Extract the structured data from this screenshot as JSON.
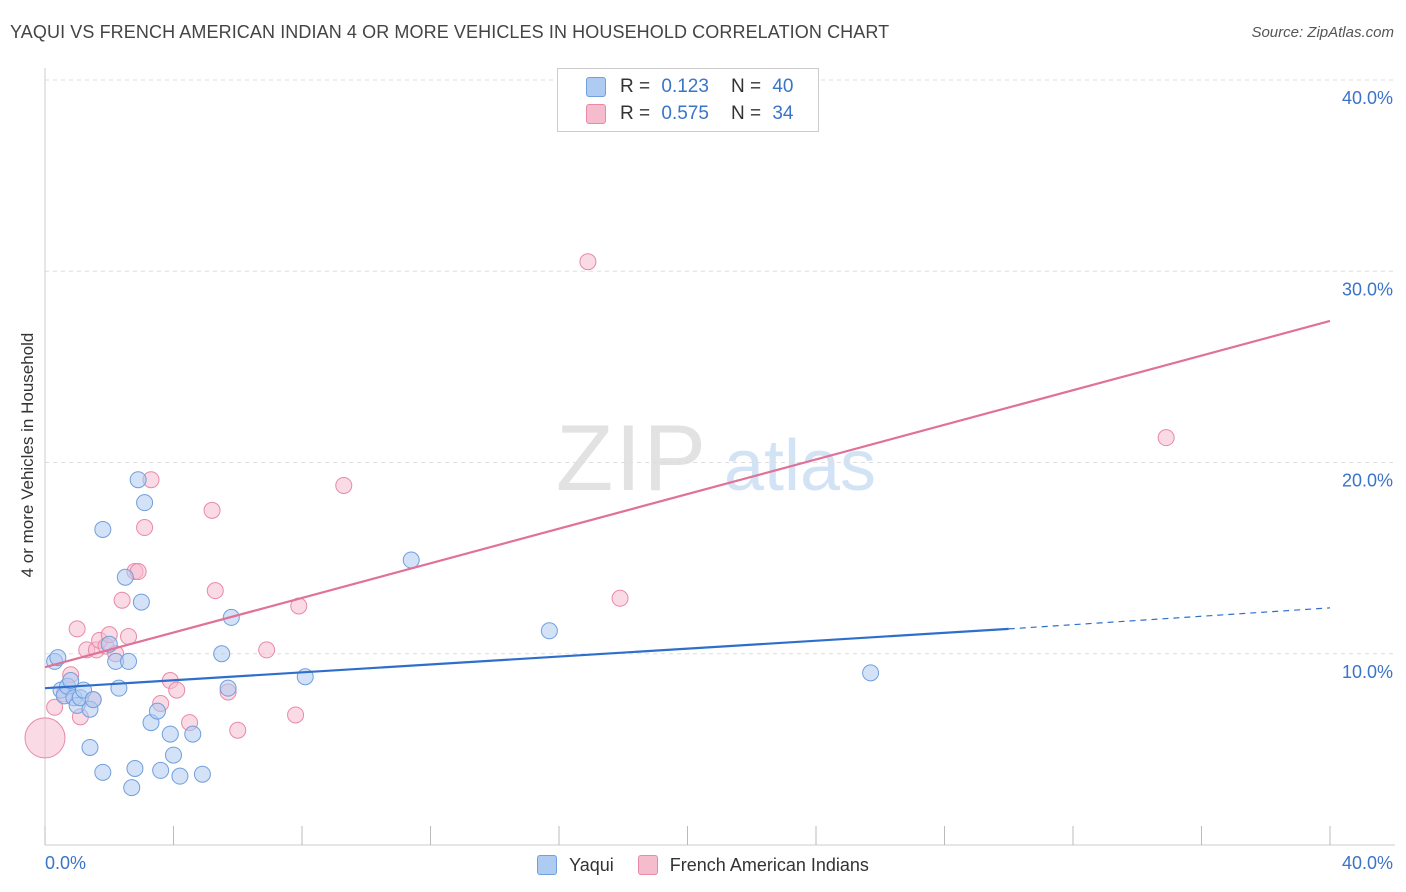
{
  "title": "YAQUI VS FRENCH AMERICAN INDIAN 4 OR MORE VEHICLES IN HOUSEHOLD CORRELATION CHART",
  "source": "Source: ZipAtlas.com",
  "watermark": {
    "zip": "ZIP",
    "atlas": "atlas"
  },
  "colors": {
    "yaqui_fill": "#aecbf1",
    "yaqui_stroke": "#6f9fdd",
    "yaqui_line": "#2f6fcc",
    "french_fill": "#f5bccd",
    "french_stroke": "#e88aa7",
    "french_line": "#e07199",
    "tick_label": "#3a74c9",
    "grid": "#dddddd"
  },
  "legend": {
    "rows": [
      {
        "r_label": "R =",
        "r_value": "0.123",
        "n_label": "N =",
        "n_value": "40"
      },
      {
        "r_label": "R =",
        "r_value": "0.575",
        "n_label": "N =",
        "n_value": "34"
      }
    ]
  },
  "bottom_legend": [
    "Yaqui",
    "French American Indians"
  ],
  "chart_data": {
    "type": "scatter",
    "title": "YAQUI VS FRENCH AMERICAN INDIAN 4 OR MORE VEHICLES IN HOUSEHOLD CORRELATION CHART",
    "xlabel": "",
    "ylabel": "4 or more Vehicles in Household",
    "xlim": [
      0,
      40
    ],
    "ylim": [
      0,
      40
    ],
    "x_tick_labels": [
      "0.0%",
      "40.0%"
    ],
    "y_ticks": [
      10,
      20,
      30,
      40
    ],
    "y_tick_labels": [
      "10.0%",
      "20.0%",
      "30.0%",
      "40.0%"
    ],
    "series": [
      {
        "name": "Yaqui",
        "r": 0.123,
        "n": 40,
        "points": [
          [
            0.3,
            9.6
          ],
          [
            0.4,
            9.8
          ],
          [
            0.5,
            8.1
          ],
          [
            0.6,
            7.8
          ],
          [
            0.7,
            8.3
          ],
          [
            0.8,
            8.6
          ],
          [
            0.9,
            7.7
          ],
          [
            1.0,
            7.3
          ],
          [
            1.1,
            7.7
          ],
          [
            1.2,
            8.1
          ],
          [
            1.4,
            7.1
          ],
          [
            1.5,
            7.6
          ],
          [
            1.4,
            5.1
          ],
          [
            1.8,
            3.8
          ],
          [
            2.0,
            10.5
          ],
          [
            2.2,
            9.6
          ],
          [
            2.3,
            8.2
          ],
          [
            2.5,
            14.0
          ],
          [
            2.6,
            9.6
          ],
          [
            1.8,
            16.5
          ],
          [
            2.9,
            19.1
          ],
          [
            3.1,
            17.9
          ],
          [
            3.0,
            12.7
          ],
          [
            2.8,
            4.0
          ],
          [
            2.7,
            3.0
          ],
          [
            3.3,
            6.4
          ],
          [
            3.5,
            7.0
          ],
          [
            3.6,
            3.9
          ],
          [
            3.9,
            5.8
          ],
          [
            4.2,
            3.6
          ],
          [
            4.6,
            5.8
          ],
          [
            4.0,
            4.7
          ],
          [
            4.9,
            3.7
          ],
          [
            5.5,
            10.0
          ],
          [
            5.7,
            8.2
          ],
          [
            5.8,
            11.9
          ],
          [
            8.1,
            8.8
          ],
          [
            11.4,
            14.9
          ],
          [
            15.7,
            11.2
          ],
          [
            25.7,
            9.0
          ]
        ]
      },
      {
        "name": "French American Indians",
        "r": 0.575,
        "n": 34,
        "points": [
          [
            0.0,
            5.6
          ],
          [
            0.3,
            7.2
          ],
          [
            0.6,
            7.9
          ],
          [
            0.8,
            8.9
          ],
          [
            1.0,
            11.3
          ],
          [
            1.1,
            6.7
          ],
          [
            1.3,
            10.2
          ],
          [
            1.5,
            7.6
          ],
          [
            1.6,
            10.2
          ],
          [
            1.7,
            10.7
          ],
          [
            1.9,
            10.4
          ],
          [
            2.0,
            11.0
          ],
          [
            2.2,
            10.0
          ],
          [
            2.4,
            12.8
          ],
          [
            2.6,
            10.9
          ],
          [
            2.8,
            14.3
          ],
          [
            2.9,
            14.3
          ],
          [
            3.1,
            16.6
          ],
          [
            3.3,
            19.1
          ],
          [
            3.6,
            7.4
          ],
          [
            3.9,
            8.6
          ],
          [
            4.1,
            8.1
          ],
          [
            4.5,
            6.4
          ],
          [
            5.2,
            17.5
          ],
          [
            5.3,
            13.3
          ],
          [
            5.7,
            8.0
          ],
          [
            6.0,
            6.0
          ],
          [
            6.9,
            10.2
          ],
          [
            7.8,
            6.8
          ],
          [
            7.9,
            12.5
          ],
          [
            9.3,
            18.8
          ],
          [
            16.9,
            30.5
          ],
          [
            17.9,
            12.9
          ],
          [
            34.9,
            21.3
          ]
        ]
      }
    ],
    "trend_lines": [
      {
        "series": "Yaqui",
        "solid": [
          [
            0,
            8.2
          ],
          [
            30,
            11.3
          ]
        ],
        "dashed": [
          [
            30,
            11.3
          ],
          [
            40,
            12.4
          ]
        ]
      },
      {
        "series": "French American Indians",
        "solid": [
          [
            0,
            9.3
          ],
          [
            40,
            27.4
          ]
        ]
      }
    ]
  }
}
